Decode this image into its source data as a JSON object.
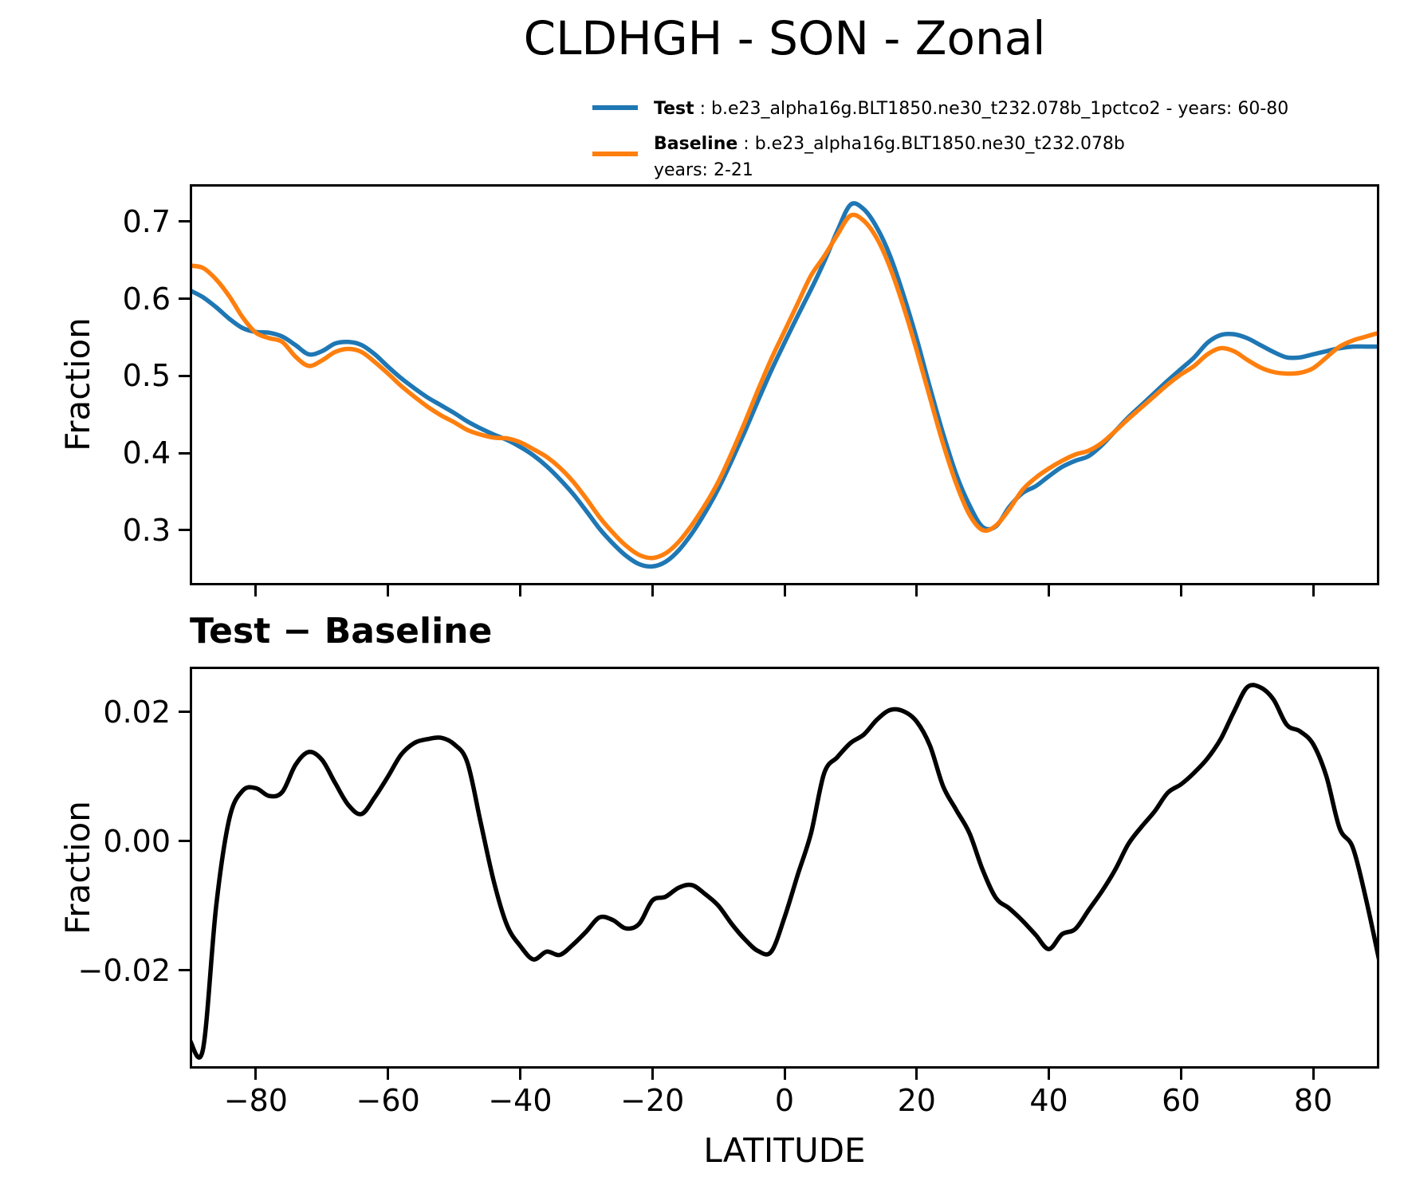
{
  "title": "CLDHGH - SON - Zonal",
  "legend": {
    "test": {
      "label": "Test",
      "desc": " : b.e23_alpha16g.BLT1850.ne30_t232.078b_1pctco2 - years: 60-80"
    },
    "baseline": {
      "label": "Baseline",
      "desc": " : b.e23_alpha16g.BLT1850.ne30_t232.078b",
      "years": "years: 2-21"
    }
  },
  "colors": {
    "test": "#1f77b4",
    "baseline": "#ff7f0e",
    "diff": "#000000"
  },
  "chart_data": [
    {
      "type": "line",
      "title": "CLDHGH - SON - Zonal",
      "xlabel": "",
      "ylabel": "Fraction",
      "xlim": [
        -90,
        90
      ],
      "ylim": [
        0.2285,
        0.7485
      ],
      "grid": false,
      "legend_position": "above axes, upper right",
      "xticks": [
        -80,
        -60,
        -40,
        -20,
        0,
        20,
        40,
        60,
        80
      ],
      "xtick_labels": [
        "",
        "",
        "",
        "",
        "",
        "",
        "",
        "",
        ""
      ],
      "yticks": [
        0.3,
        0.4,
        0.5,
        0.6,
        0.7
      ],
      "ytick_labels": [
        "0.3",
        "0.4",
        "0.5",
        "0.6",
        "0.7"
      ],
      "x": [
        -90,
        -88,
        -86,
        -84,
        -82,
        -80,
        -78,
        -76,
        -74,
        -72,
        -70,
        -68,
        -66,
        -64,
        -62,
        -60,
        -58,
        -56,
        -54,
        -52,
        -50,
        -48,
        -46,
        -44,
        -42,
        -40,
        -38,
        -36,
        -34,
        -32,
        -30,
        -28,
        -26,
        -24,
        -22,
        -20,
        -18,
        -16,
        -14,
        -12,
        -10,
        -8,
        -6,
        -4,
        -2,
        0,
        2,
        4,
        6,
        8,
        10,
        12,
        14,
        16,
        18,
        20,
        22,
        24,
        26,
        28,
        30,
        32,
        34,
        36,
        38,
        40,
        42,
        44,
        46,
        48,
        50,
        52,
        54,
        56,
        58,
        60,
        62,
        64,
        66,
        68,
        70,
        72,
        74,
        76,
        78,
        80,
        82,
        84,
        86,
        88,
        90
      ],
      "series": [
        {
          "name": "Test",
          "color": "#1f77b4",
          "values": [
            0.611,
            0.602,
            0.589,
            0.574,
            0.562,
            0.557,
            0.556,
            0.551,
            0.54,
            0.528,
            0.532,
            0.542,
            0.544,
            0.54,
            0.528,
            0.512,
            0.497,
            0.484,
            0.472,
            0.462,
            0.452,
            0.441,
            0.432,
            0.424,
            0.417,
            0.408,
            0.397,
            0.383,
            0.366,
            0.347,
            0.325,
            0.302,
            0.283,
            0.267,
            0.256,
            0.253,
            0.259,
            0.274,
            0.296,
            0.323,
            0.354,
            0.39,
            0.428,
            0.468,
            0.507,
            0.543,
            0.578,
            0.612,
            0.648,
            0.688,
            0.722,
            0.716,
            0.692,
            0.655,
            0.605,
            0.548,
            0.485,
            0.425,
            0.372,
            0.332,
            0.304,
            0.305,
            0.33,
            0.348,
            0.357,
            0.37,
            0.382,
            0.39,
            0.396,
            0.41,
            0.428,
            0.446,
            0.462,
            0.478,
            0.494,
            0.509,
            0.524,
            0.543,
            0.553,
            0.554,
            0.549,
            0.54,
            0.531,
            0.524,
            0.524,
            0.528,
            0.532,
            0.536,
            0.538,
            0.538,
            0.538
          ]
        },
        {
          "name": "Baseline",
          "color": "#ff7f0e",
          "values": [
            0.643,
            0.64,
            0.625,
            0.603,
            0.576,
            0.556,
            0.549,
            0.544,
            0.525,
            0.513,
            0.52,
            0.531,
            0.535,
            0.531,
            0.518,
            0.503,
            0.487,
            0.473,
            0.46,
            0.449,
            0.44,
            0.43,
            0.424,
            0.42,
            0.419,
            0.414,
            0.405,
            0.395,
            0.381,
            0.363,
            0.341,
            0.317,
            0.297,
            0.28,
            0.268,
            0.264,
            0.27,
            0.285,
            0.307,
            0.333,
            0.363,
            0.4,
            0.44,
            0.482,
            0.522,
            0.558,
            0.594,
            0.63,
            0.655,
            0.683,
            0.708,
            0.701,
            0.678,
            0.64,
            0.59,
            0.533,
            0.472,
            0.412,
            0.36,
            0.32,
            0.3,
            0.306,
            0.327,
            0.352,
            0.368,
            0.38,
            0.39,
            0.398,
            0.403,
            0.413,
            0.428,
            0.444,
            0.459,
            0.474,
            0.489,
            0.502,
            0.513,
            0.528,
            0.536,
            0.532,
            0.521,
            0.511,
            0.505,
            0.503,
            0.504,
            0.51,
            0.524,
            0.538,
            0.546,
            0.551,
            0.556
          ]
        }
      ]
    },
    {
      "type": "line",
      "title": "Test − Baseline",
      "xlabel": "LATITUDE",
      "ylabel": "Fraction",
      "xlim": [
        -90,
        90
      ],
      "ylim": [
        -0.0352,
        0.027
      ],
      "grid": false,
      "xticks": [
        -80,
        -60,
        -40,
        -20,
        0,
        20,
        40,
        60,
        80
      ],
      "xtick_labels": [
        "−80",
        "−60",
        "−40",
        "−20",
        "0",
        "20",
        "40",
        "60",
        "80"
      ],
      "yticks": [
        -0.02,
        0.0,
        0.02
      ],
      "ytick_labels": [
        "−0.02",
        "0.00",
        "0.02"
      ],
      "x": [
        -90,
        -88,
        -86,
        -84,
        -82,
        -80,
        -78,
        -76,
        -74,
        -72,
        -70,
        -68,
        -66,
        -64,
        -62,
        -60,
        -58,
        -56,
        -54,
        -52,
        -50,
        -48,
        -46,
        -44,
        -42,
        -40,
        -38,
        -36,
        -34,
        -32,
        -30,
        -28,
        -26,
        -24,
        -22,
        -20,
        -18,
        -16,
        -14,
        -12,
        -10,
        -8,
        -6,
        -4,
        -2,
        0,
        2,
        4,
        6,
        8,
        10,
        12,
        14,
        16,
        18,
        20,
        22,
        24,
        26,
        28,
        30,
        32,
        34,
        36,
        38,
        40,
        42,
        44,
        46,
        48,
        50,
        52,
        54,
        56,
        58,
        60,
        62,
        64,
        66,
        68,
        70,
        72,
        74,
        76,
        78,
        80,
        82,
        84,
        86,
        88,
        90
      ],
      "series": [
        {
          "name": "Test − Baseline",
          "color": "#000000",
          "values": [
            -0.0308,
            -0.0322,
            -0.01,
            0.0035,
            0.0078,
            0.0082,
            0.007,
            0.0076,
            0.0118,
            0.0138,
            0.0126,
            0.009,
            0.0056,
            0.0042,
            0.0068,
            0.01,
            0.0134,
            0.0152,
            0.0158,
            0.016,
            0.015,
            0.0122,
            0.003,
            -0.0062,
            -0.013,
            -0.0162,
            -0.0183,
            -0.0171,
            -0.0176,
            -0.016,
            -0.014,
            -0.0118,
            -0.0122,
            -0.0135,
            -0.0128,
            -0.0092,
            -0.0086,
            -0.0072,
            -0.0068,
            -0.0082,
            -0.01,
            -0.0128,
            -0.0152,
            -0.017,
            -0.0171,
            -0.0118,
            -0.0052,
            0.0012,
            0.0105,
            0.013,
            0.0152,
            0.0165,
            0.0188,
            0.0203,
            0.0201,
            0.0185,
            0.0148,
            0.0085,
            0.0048,
            0.0012,
            -0.0045,
            -0.0088,
            -0.0104,
            -0.0123,
            -0.0145,
            -0.0167,
            -0.0144,
            -0.0136,
            -0.0107,
            -0.0078,
            -0.0045,
            -0.0005,
            0.0022,
            0.0046,
            0.0075,
            0.0088,
            0.0106,
            0.0128,
            0.0158,
            0.02,
            0.0238,
            0.0238,
            0.0219,
            0.018,
            0.017,
            0.015,
            0.01,
            0.002,
            -0.001,
            -0.009,
            -0.0185
          ]
        }
      ]
    }
  ]
}
